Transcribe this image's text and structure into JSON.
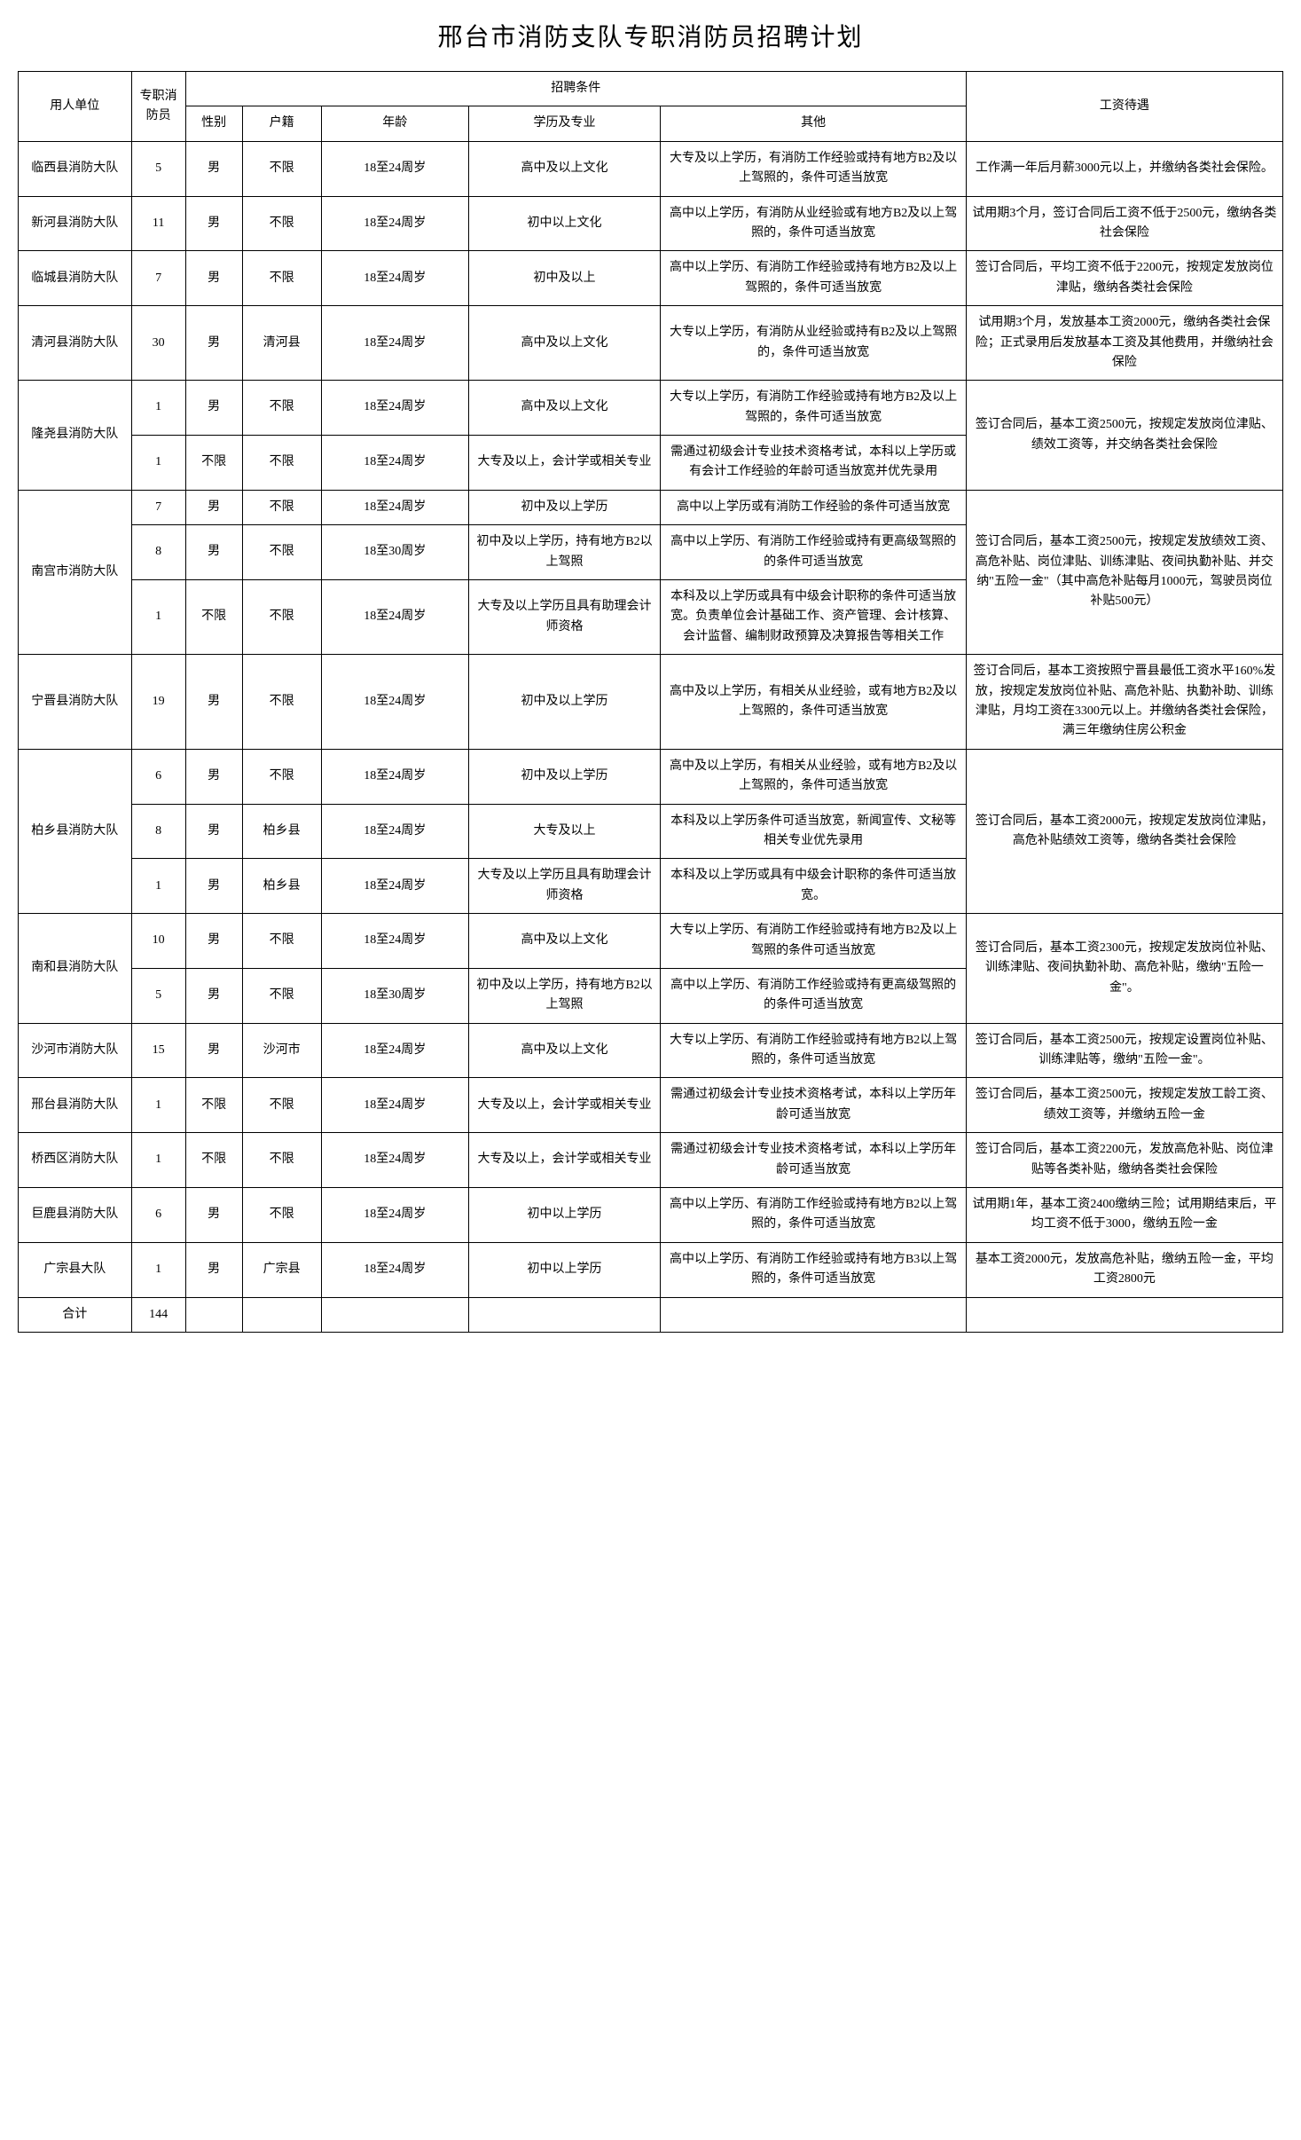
{
  "title": "邢台市消防支队专职消防员招聘计划",
  "headers": {
    "unit": "用人单位",
    "count": "专职消防员",
    "conditions": "招聘条件",
    "gender": "性别",
    "huji": "户籍",
    "age": "年龄",
    "edu": "学历及专业",
    "other": "其他",
    "salary": "工资待遇"
  },
  "rows": [
    {
      "unit": "临西县消防大队",
      "unit_rs": 1,
      "count": "5",
      "gender": "男",
      "huji": "不限",
      "age": "18至24周岁",
      "edu": "高中及以上文化",
      "other": "大专及以上学历，有消防工作经验或持有地方B2及以上驾照的，条件可适当放宽",
      "salary": "工作满一年后月薪3000元以上，并缴纳各类社会保险。",
      "salary_rs": 1
    },
    {
      "unit": "新河县消防大队",
      "unit_rs": 1,
      "count": "11",
      "gender": "男",
      "huji": "不限",
      "age": "18至24周岁",
      "edu": "初中以上文化",
      "other": "高中以上学历，有消防从业经验或有地方B2及以上驾照的，条件可适当放宽",
      "salary": "试用期3个月，签订合同后工资不低于2500元，缴纳各类社会保险",
      "salary_rs": 1
    },
    {
      "unit": "临城县消防大队",
      "unit_rs": 1,
      "count": "7",
      "gender": "男",
      "huji": "不限",
      "age": "18至24周岁",
      "edu": "初中及以上",
      "other": "高中以上学历、有消防工作经验或持有地方B2及以上驾照的，条件可适当放宽",
      "salary": "签订合同后，平均工资不低于2200元，按规定发放岗位津贴，缴纳各类社会保险",
      "salary_rs": 1
    },
    {
      "unit": "清河县消防大队",
      "unit_rs": 1,
      "count": "30",
      "gender": "男",
      "huji": "清河县",
      "age": "18至24周岁",
      "edu": "高中及以上文化",
      "other": "大专以上学历，有消防从业经验或持有B2及以上驾照的，条件可适当放宽",
      "salary": "试用期3个月，发放基本工资2000元，缴纳各类社会保险；正式录用后发放基本工资及其他费用，并缴纳社会保险",
      "salary_rs": 1
    },
    {
      "unit": "隆尧县消防大队",
      "unit_rs": 2,
      "count": "1",
      "gender": "男",
      "huji": "不限",
      "age": "18至24周岁",
      "edu": "高中及以上文化",
      "other": "大专以上学历，有消防工作经验或持有地方B2及以上驾照的，条件可适当放宽",
      "salary": "签订合同后，基本工资2500元，按规定发放岗位津贴、绩效工资等，并交纳各类社会保险",
      "salary_rs": 2
    },
    {
      "unit": "",
      "unit_rs": 0,
      "count": "1",
      "gender": "不限",
      "huji": "不限",
      "age": "18至24周岁",
      "edu": "大专及以上，会计学或相关专业",
      "other": "需通过初级会计专业技术资格考试，本科以上学历或有会计工作经验的年龄可适当放宽并优先录用",
      "salary": "",
      "salary_rs": 0
    },
    {
      "unit": "南宫市消防大队",
      "unit_rs": 3,
      "count": "7",
      "gender": "男",
      "huji": "不限",
      "age": "18至24周岁",
      "edu": "初中及以上学历",
      "other": "高中以上学历或有消防工作经验的条件可适当放宽",
      "salary": "签订合同后，基本工资2500元，按规定发放绩效工资、高危补贴、岗位津贴、训练津贴、夜间执勤补贴、并交纳\"五险一金\"（其中高危补贴每月1000元，驾驶员岗位补贴500元）",
      "salary_rs": 3
    },
    {
      "unit": "",
      "unit_rs": 0,
      "count": "8",
      "gender": "男",
      "huji": "不限",
      "age": "18至30周岁",
      "edu": "初中及以上学历，持有地方B2以上驾照",
      "other": "高中以上学历、有消防工作经验或持有更高级驾照的的条件可适当放宽",
      "salary": "",
      "salary_rs": 0
    },
    {
      "unit": "",
      "unit_rs": 0,
      "count": "1",
      "gender": "不限",
      "huji": "不限",
      "age": "18至24周岁",
      "edu": "大专及以上学历且具有助理会计师资格",
      "other": "本科及以上学历或具有中级会计职称的条件可适当放宽。负责单位会计基础工作、资产管理、会计核算、会计监督、编制财政预算及决算报告等相关工作",
      "salary": "",
      "salary_rs": 0
    },
    {
      "unit": "宁晋县消防大队",
      "unit_rs": 1,
      "count": "19",
      "gender": "男",
      "huji": "不限",
      "age": "18至24周岁",
      "edu": "初中及以上学历",
      "other": "高中及以上学历，有相关从业经验，或有地方B2及以上驾照的，条件可适当放宽",
      "salary": "签订合同后，基本工资按照宁晋县最低工资水平160%发放，按规定发放岗位补贴、高危补贴、执勤补助、训练津贴，月均工资在3300元以上。并缴纳各类社会保险，满三年缴纳住房公积金",
      "salary_rs": 1
    },
    {
      "unit": "柏乡县消防大队",
      "unit_rs": 3,
      "count": "6",
      "gender": "男",
      "huji": "不限",
      "age": "18至24周岁",
      "edu": "初中及以上学历",
      "other": "高中及以上学历，有相关从业经验，或有地方B2及以上驾照的，条件可适当放宽",
      "salary": "签订合同后，基本工资2000元，按规定发放岗位津贴，高危补贴绩效工资等，缴纳各类社会保险",
      "salary_rs": 3
    },
    {
      "unit": "",
      "unit_rs": 0,
      "count": "8",
      "gender": "男",
      "huji": "柏乡县",
      "age": "18至24周岁",
      "edu": "大专及以上",
      "other": "本科及以上学历条件可适当放宽，新闻宣传、文秘等相关专业优先录用",
      "salary": "",
      "salary_rs": 0
    },
    {
      "unit": "",
      "unit_rs": 0,
      "count": "1",
      "gender": "男",
      "huji": "柏乡县",
      "age": "18至24周岁",
      "edu": "大专及以上学历且具有助理会计师资格",
      "other": "本科及以上学历或具有中级会计职称的条件可适当放宽。",
      "salary": "",
      "salary_rs": 0
    },
    {
      "unit": "南和县消防大队",
      "unit_rs": 2,
      "count": "10",
      "gender": "男",
      "huji": "不限",
      "age": "18至24周岁",
      "edu": "高中及以上文化",
      "other": "大专以上学历、有消防工作经验或持有地方B2及以上驾照的条件可适当放宽",
      "salary": "签订合同后，基本工资2300元，按规定发放岗位补贴、训练津贴、夜间执勤补助、高危补贴，缴纳\"五险一金\"。",
      "salary_rs": 2
    },
    {
      "unit": "",
      "unit_rs": 0,
      "count": "5",
      "gender": "男",
      "huji": "不限",
      "age": "18至30周岁",
      "edu": "初中及以上学历，持有地方B2以上驾照",
      "other": "高中以上学历、有消防工作经验或持有更高级驾照的的条件可适当放宽",
      "salary": "",
      "salary_rs": 0
    },
    {
      "unit": "沙河市消防大队",
      "unit_rs": 1,
      "count": "15",
      "gender": "男",
      "huji": "沙河市",
      "age": "18至24周岁",
      "edu": "高中及以上文化",
      "other": "大专以上学历、有消防工作经验或持有地方B2以上驾照的，条件可适当放宽",
      "salary": "签订合同后，基本工资2500元，按规定设置岗位补贴、训练津贴等，缴纳\"五险一金\"。",
      "salary_rs": 1
    },
    {
      "unit": "邢台县消防大队",
      "unit_rs": 1,
      "count": "1",
      "gender": "不限",
      "huji": "不限",
      "age": "18至24周岁",
      "edu": "大专及以上，会计学或相关专业",
      "other": "需通过初级会计专业技术资格考试，本科以上学历年龄可适当放宽",
      "salary": "签订合同后，基本工资2500元，按规定发放工龄工资、绩效工资等，并缴纳五险一金",
      "salary_rs": 1
    },
    {
      "unit": "桥西区消防大队",
      "unit_rs": 1,
      "count": "1",
      "gender": "不限",
      "huji": "不限",
      "age": "18至24周岁",
      "edu": "大专及以上，会计学或相关专业",
      "other": "需通过初级会计专业技术资格考试，本科以上学历年龄可适当放宽",
      "salary": "签订合同后，基本工资2200元，发放高危补贴、岗位津贴等各类补贴，缴纳各类社会保险",
      "salary_rs": 1
    },
    {
      "unit": "巨鹿县消防大队",
      "unit_rs": 1,
      "count": "6",
      "gender": "男",
      "huji": "不限",
      "age": "18至24周岁",
      "edu": "初中以上学历",
      "other": "高中以上学历、有消防工作经验或持有地方B2以上驾照的，条件可适当放宽",
      "salary": "试用期1年，基本工资2400缴纳三险；试用期结束后，平均工资不低于3000，缴纳五险一金",
      "salary_rs": 1
    },
    {
      "unit": "广宗县大队",
      "unit_rs": 1,
      "count": "1",
      "gender": "男",
      "huji": "广宗县",
      "age": "18至24周岁",
      "edu": "初中以上学历",
      "other": "高中以上学历、有消防工作经验或持有地方B3以上驾照的，条件可适当放宽",
      "salary": "基本工资2000元，发放高危补贴，缴纳五险一金，平均工资2800元",
      "salary_rs": 1
    }
  ],
  "total_label": "合计",
  "total_value": "144"
}
